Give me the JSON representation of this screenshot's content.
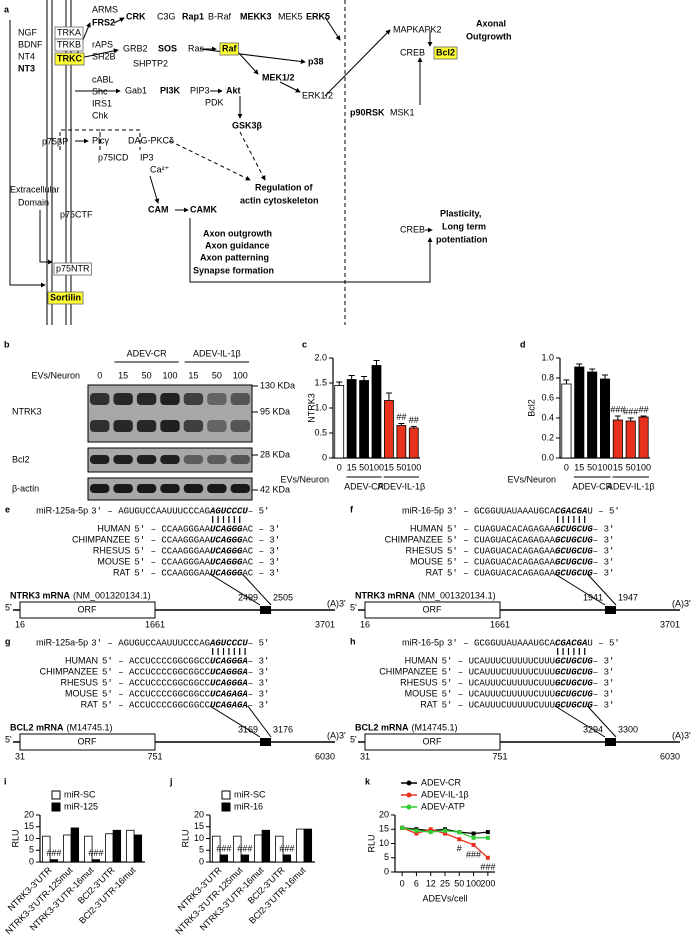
{
  "diagram": {
    "label": "a",
    "nodes": [
      "NGF",
      "BDNF",
      "NT4",
      "NT3",
      "TRKA",
      "TRKB",
      "TRKC",
      "ARMS",
      "FRS2",
      "CRK",
      "C3G",
      "Rap1",
      "B-Raf",
      "MEKK3",
      "MEK5",
      "ERK5",
      "rAPS",
      "SH2B",
      "GRB2",
      "SOS",
      "Ras",
      "Raf",
      "SHPTP2",
      "MEK1/2",
      "p38",
      "MAPKAPK2",
      "CREB",
      "Bcl2",
      "Axonal",
      "Outgrowth",
      "ERK1/2",
      "p90RSK",
      "MSK1",
      "cABL",
      "Shc",
      "IRS1",
      "Chk",
      "Gab1",
      "PI3K",
      "PIP3",
      "Akt",
      "PDK",
      "GSK3β",
      "Plcγ",
      "DAG-PKCδ",
      "IP3",
      "Ca²⁺",
      "p75βP",
      "p75ICD",
      "Extracellular",
      "Domain",
      "p75CTF",
      "CAM",
      "CAMK",
      "Regulation of",
      "actin cytoskeleton",
      "Axon outgrowth",
      "Axon guidance",
      "Axon patterning",
      "Synapse formation",
      "CREB",
      "Plasticity,",
      "Long term",
      "potentiation",
      "p75NTR",
      "Sortilin"
    ]
  },
  "blot": {
    "label": "b",
    "groups": [
      "ADEV-CR",
      "ADEV-IL-1β"
    ],
    "lane_title": "EVs/Neuron",
    "lanes": [
      0,
      15,
      50,
      100,
      15,
      50,
      100
    ],
    "rows": [
      "NTRK3",
      "Bcl2",
      "β-actin"
    ],
    "markers": [
      "130 KDa",
      "95 KDa",
      "28 KDa",
      "42 KDa"
    ]
  },
  "alignments": [
    {
      "label": "e",
      "mirna": "miR-125a-5p",
      "mirna_seq": [
        "3' – AGUGUCCAAUUUCCCAG",
        "AGUCCCU",
        " – 5'"
      ],
      "species": [
        {
          "name": "HUMAN",
          "seq": [
            "5' – CCAAGGGAA",
            "UCAGGG",
            "AC – 3'"
          ]
        },
        {
          "name": "CHIMPANZEE",
          "seq": [
            "5' – CCAAGGGAA",
            "UCAGGG",
            "AC – 3'"
          ]
        },
        {
          "name": "RHESUS",
          "seq": [
            "5' – CCAAGGGAA",
            "UCAGGG",
            "AC – 3'"
          ]
        },
        {
          "name": "MOUSE",
          "seq": [
            "5' – CCAAGGGAA",
            "UCAGGG",
            "AC – 3'"
          ]
        },
        {
          "name": "RAT",
          "seq": [
            "5' – CCAAGGGAA",
            "UCAGGG",
            "AC – 3'"
          ]
        }
      ],
      "mrna": "NTRK3 mRNA",
      "accession": "(NM_001320134.1)",
      "orf": "ORF",
      "five": "5'",
      "three": "(A)3'",
      "positions": [
        16,
        1661,
        2499,
        2505,
        3701
      ]
    },
    {
      "label": "f",
      "mirna": "miR-16-5p",
      "mirna_seq": [
        "3' – GCGGUUAUAAAUGCA",
        "CGACGA",
        "U – 5'"
      ],
      "species": [
        {
          "name": "HUMAN",
          "seq": [
            "5' – CUAGUACACAGAGAA",
            "GCUGCUG",
            " – 3'"
          ]
        },
        {
          "name": "CHIMPANZEE",
          "seq": [
            "5' – CUAGUACACAGAGAA",
            "GCUGCUG",
            " – 3'"
          ]
        },
        {
          "name": "RHESUS",
          "seq": [
            "5' – CUAGUACACAGAGAA",
            "GCUGCUG",
            " – 3'"
          ]
        },
        {
          "name": "MOUSE",
          "seq": [
            "5' – CUAGUACACAGAGAA",
            "GCUGCUG",
            " – 3'"
          ]
        },
        {
          "name": "RAT",
          "seq": [
            "5' – CUAGUACACAGAGAA",
            "GCUGCUG",
            " – 3'"
          ]
        }
      ],
      "mrna": "NTRK3 mRNA",
      "accession": "(NM_001320134.1)",
      "orf": "ORF",
      "five": "5'",
      "three": "(A)3'",
      "positions": [
        16,
        1661,
        1941,
        1947,
        3701
      ]
    },
    {
      "label": "g",
      "mirna": "miR-125a-5p",
      "mirna_seq": [
        "3' – AGUGUCCAAUUUCCCAG",
        "AGUCCCU",
        " – 5'"
      ],
      "species": [
        {
          "name": "HUMAN",
          "seq": [
            "5' – ACCUCCCCGGCGGCC",
            "UCAGGGA",
            " – 3'"
          ]
        },
        {
          "name": "CHIMPANZEE",
          "seq": [
            "5' – ACCUCCCCGGCGGCC",
            "UCAGGGA",
            " – 3'"
          ]
        },
        {
          "name": "RHESUS",
          "seq": [
            "5' – ACCUCCCCGGCGGCC",
            "UCAGGGA",
            " – 3'"
          ]
        },
        {
          "name": "MOUSE",
          "seq": [
            "5' – ACCUCCCCGGCGGCC",
            "UCAGAGA",
            " – 3'"
          ]
        },
        {
          "name": "RAT",
          "seq": [
            "5' – ACCUCCCCGGCGGCC",
            "UCAGAGA",
            " – 3'"
          ]
        }
      ],
      "mrna": "BCL2 mRNA",
      "accession": "(M14745.1)",
      "orf": "ORF",
      "five": "5'",
      "three": "(A)3'",
      "positions": [
        31,
        751,
        3169,
        3176,
        6030
      ]
    },
    {
      "label": "h",
      "mirna": "miR-16-5p",
      "mirna_seq": [
        "3' – GCGGUUAUAAAUGCA",
        "CGACGA",
        "U – 5'"
      ],
      "species": [
        {
          "name": "HUMAN",
          "seq": [
            "5' – UCAUUUCUUUUUCUUU",
            "GCUGCUG",
            " – 3'"
          ]
        },
        {
          "name": "CHIMPANZEE",
          "seq": [
            "5' – UCAUUUCUUUUUCUUU",
            "GCUGCUG",
            " – 3'"
          ]
        },
        {
          "name": "RHESUS",
          "seq": [
            "5' – UCAUUUCUUUUUCUUU",
            "GCUGCUG",
            " – 3'"
          ]
        },
        {
          "name": "MOUSE",
          "seq": [
            "5' – UCAUUUCUUUUUCUUU",
            "GCUGCUG",
            " – 3'"
          ]
        },
        {
          "name": "RAT",
          "seq": [
            "5' – UCAUUUCUUUUUCUUU",
            "GCUGCUG",
            " – 3'"
          ]
        }
      ],
      "mrna": "BCL2 mRNA",
      "accession": "(M14745.1)",
      "orf": "ORF",
      "five": "5'",
      "three": "(A)3'",
      "positions": [
        31,
        751,
        3294,
        3300,
        6030
      ]
    }
  ],
  "chart_data": [
    {
      "type": "bar",
      "label": "c",
      "ylabel": "NTRK3",
      "xlabel": "EVs/Neuron",
      "categories": [
        "0",
        "15",
        "50",
        "100",
        "15",
        "50",
        "100"
      ],
      "groups": [
        "ADEV-CR",
        "ADEV-IL-1β"
      ],
      "values": [
        1.45,
        1.57,
        1.55,
        1.85,
        1.15,
        0.65,
        0.6
      ],
      "errors": [
        0.07,
        0.08,
        0.08,
        0.1,
        0.15,
        0.04,
        0.03
      ],
      "colors": [
        "#ffffff",
        "#000000",
        "#000000",
        "#000000",
        "#e8321e",
        "#e8321e",
        "#e8321e"
      ],
      "significance": [
        null,
        null,
        null,
        null,
        null,
        "##",
        "##"
      ],
      "ylim": [
        0,
        2.0
      ],
      "yticks": [
        0,
        0.5,
        {
          "value": 1.0,
          "label": "1.0"
        },
        1.5,
        {
          "value": 2.0,
          "label": "2.0"
        }
      ]
    },
    {
      "type": "bar",
      "label": "d",
      "ylabel": "Bcl2",
      "xlabel": "EVs/Neuron",
      "categories": [
        "0",
        "15",
        "50",
        "100",
        "15",
        "50",
        "100"
      ],
      "groups": [
        "ADEV-CR",
        "ADEV-IL-1β"
      ],
      "values": [
        0.74,
        0.91,
        0.86,
        0.79,
        0.38,
        0.37,
        0.41
      ],
      "errors": [
        0.04,
        0.03,
        0.03,
        0.04,
        0.04,
        0.03,
        0.01
      ],
      "colors": [
        "#ffffff",
        "#000000",
        "#000000",
        "#000000",
        "#e8321e",
        "#e8321e",
        "#e8321e"
      ],
      "significance": [
        null,
        null,
        null,
        null,
        "###",
        "###",
        "##"
      ],
      "ylim": [
        0,
        1.0
      ],
      "yticks": [
        {
          "value": 0,
          "label": "0.0"
        },
        0.2,
        0.4,
        0.6,
        0.8,
        {
          "value": 1.0,
          "label": "1.0"
        }
      ]
    },
    {
      "type": "bar",
      "label": "i",
      "ylabel": "RLU",
      "categories": [
        "NTRK3-3'UTR",
        "NTRK3-3'UTR-125mut",
        "NTRK3-3'UTR-16mut",
        "BCl2-3'UTR",
        "BCl2-3'UTR-16mut"
      ],
      "series": [
        {
          "name": "miR-SC",
          "color": "#ffffff",
          "values": [
            11,
            11.5,
            11,
            12,
            13.5
          ]
        },
        {
          "name": "miR-125",
          "color": "#000000",
          "values": [
            1,
            14.5,
            1,
            13.5,
            11.5
          ],
          "significance": [
            "###",
            null,
            "###",
            null,
            null
          ]
        }
      ],
      "ylim": [
        0,
        20
      ],
      "yticks": [
        0,
        5,
        10,
        15,
        20
      ]
    },
    {
      "type": "bar",
      "label": "j",
      "ylabel": "RLU",
      "categories": [
        "NTRK3-3'UTR",
        "NTRK3-3'UTR-125mut",
        "NTRK3-3'UTR-16mut",
        "BCl2-3'UTR",
        "BCl2-3'UTR-16mut"
      ],
      "series": [
        {
          "name": "miR-SC",
          "color": "#ffffff",
          "values": [
            11,
            11,
            11.5,
            11,
            14
          ]
        },
        {
          "name": "miR-16",
          "color": "#000000",
          "values": [
            3,
            3,
            13.5,
            3,
            14
          ],
          "significance": [
            "###",
            "###",
            null,
            "###",
            null
          ]
        }
      ],
      "ylim": [
        0,
        20
      ],
      "yticks": [
        0,
        5,
        10,
        15,
        20
      ]
    },
    {
      "type": "line",
      "label": "k",
      "ylabel": "RLU",
      "xlabel": "ADEVs/cell",
      "categories": [
        "0",
        "6",
        "12",
        "25",
        "50",
        "100",
        "200"
      ],
      "series": [
        {
          "name": "ADEV-CR",
          "color": "#000000",
          "values": [
            15.5,
            15,
            14.5,
            15,
            14,
            13.5,
            14
          ]
        },
        {
          "name": "ADEV-IL-1β",
          "color": "#e8321e",
          "values": [
            15.5,
            13.5,
            15,
            13.5,
            11.5,
            9.5,
            5
          ],
          "significance": [
            null,
            null,
            null,
            null,
            "#",
            "###",
            "###"
          ]
        },
        {
          "name": "ADEV-ATP",
          "color": "#33cc33",
          "values": [
            15.5,
            14.5,
            14,
            14.5,
            14,
            12,
            12
          ]
        }
      ],
      "ylim": [
        0,
        20
      ],
      "yticks": [
        0,
        5,
        10,
        15,
        20
      ]
    }
  ]
}
